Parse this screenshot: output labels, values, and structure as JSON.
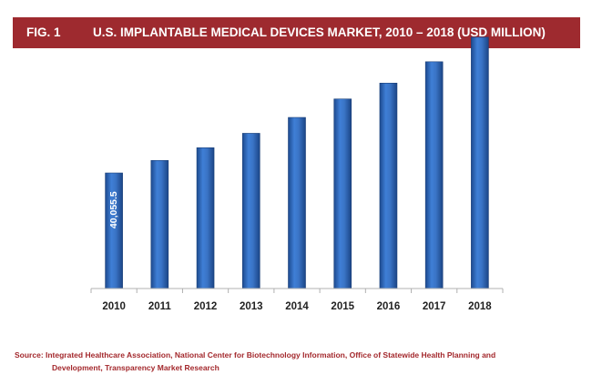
{
  "header": {
    "fig_label": "FIG. 1",
    "title": "U.S. IMPLANTABLE MEDICAL DEVICES MARKET, 2010 – 2018 (USD MILLION)",
    "background_color": "#9e2a2f"
  },
  "chart_data": {
    "type": "bar",
    "title": "U.S. IMPLANTABLE MEDICAL DEVICES MARKET, 2010 – 2018 (USD MILLION)",
    "xlabel": "",
    "ylabel": "",
    "categories": [
      "2010",
      "2011",
      "2012",
      "2013",
      "2014",
      "2015",
      "2016",
      "2017",
      "2018"
    ],
    "series": [
      {
        "values": [
          40055.5,
          44400,
          48800,
          53800,
          59300,
          65700,
          71200,
          78600,
          87100
        ],
        "data_labels": [
          "40,055.5",
          "",
          "",
          "",
          "",
          "",
          "",
          "",
          ""
        ],
        "color": "#2f65b8"
      }
    ],
    "ylim": [
      0,
      100000
    ],
    "grid": false,
    "legend": "none"
  },
  "source": {
    "line1": "Source: Integrated Healthcare Association, National Center for Biotechnology Information, Office of Statewide Health Planning and",
    "line2": "Development, Transparency Market Research"
  }
}
